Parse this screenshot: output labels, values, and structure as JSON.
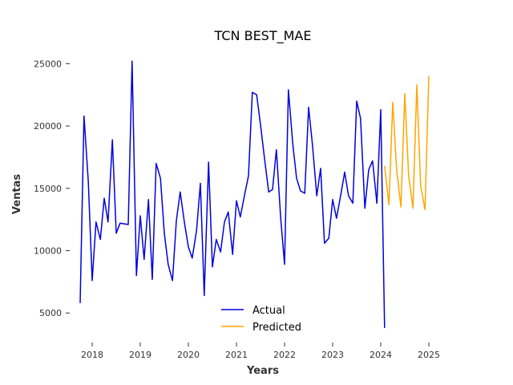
{
  "chart_data": {
    "type": "line",
    "title": "TCN BEST_MAE",
    "xlabel": "Years",
    "ylabel": "Ventas",
    "xlim": [
      2017.55,
      2025.55
    ],
    "ylim": [
      2700,
      25600
    ],
    "x_ticks": [
      2018,
      2019,
      2020,
      2021,
      2022,
      2023,
      2024,
      2025
    ],
    "x_tick_labels": [
      "2018",
      "2019",
      "2020",
      "2021",
      "2022",
      "2023",
      "2024",
      "2025"
    ],
    "y_ticks": [
      5000,
      10000,
      15000,
      20000,
      25000
    ],
    "y_tick_labels": [
      "5000",
      "10000",
      "15000",
      "20000",
      "25000"
    ],
    "grid": false,
    "legend": "bottom-center",
    "series": [
      {
        "name": "Actual",
        "color": "#0000dd",
        "points": [
          [
            2017.75,
            5800
          ],
          [
            2017.83,
            20800
          ],
          [
            2017.92,
            15500
          ],
          [
            2018.0,
            7600
          ],
          [
            2018.08,
            12300
          ],
          [
            2018.17,
            10900
          ],
          [
            2018.25,
            14200
          ],
          [
            2018.33,
            12300
          ],
          [
            2018.42,
            18900
          ],
          [
            2018.5,
            11400
          ],
          [
            2018.58,
            12200
          ],
          [
            2018.75,
            12100
          ],
          [
            2018.83,
            25200
          ],
          [
            2018.92,
            8000
          ],
          [
            2019.0,
            12800
          ],
          [
            2019.08,
            9300
          ],
          [
            2019.17,
            14100
          ],
          [
            2019.25,
            7700
          ],
          [
            2019.33,
            17000
          ],
          [
            2019.42,
            15800
          ],
          [
            2019.5,
            11400
          ],
          [
            2019.58,
            8900
          ],
          [
            2019.67,
            7600
          ],
          [
            2019.75,
            12400
          ],
          [
            2019.83,
            14700
          ],
          [
            2019.92,
            12200
          ],
          [
            2020.0,
            10300
          ],
          [
            2020.08,
            9400
          ],
          [
            2020.17,
            11600
          ],
          [
            2020.25,
            15400
          ],
          [
            2020.33,
            6400
          ],
          [
            2020.42,
            17100
          ],
          [
            2020.5,
            8700
          ],
          [
            2020.58,
            10900
          ],
          [
            2020.67,
            9900
          ],
          [
            2020.75,
            12300
          ],
          [
            2020.83,
            13100
          ],
          [
            2020.92,
            9700
          ],
          [
            2021.0,
            14000
          ],
          [
            2021.08,
            12700
          ],
          [
            2021.17,
            14500
          ],
          [
            2021.25,
            16000
          ],
          [
            2021.33,
            22700
          ],
          [
            2021.42,
            22500
          ],
          [
            2021.5,
            20100
          ],
          [
            2021.58,
            17500
          ],
          [
            2021.67,
            14700
          ],
          [
            2021.75,
            14900
          ],
          [
            2021.83,
            18100
          ],
          [
            2021.92,
            12600
          ],
          [
            2022.0,
            8900
          ],
          [
            2022.08,
            22900
          ],
          [
            2022.17,
            18600
          ],
          [
            2022.25,
            15800
          ],
          [
            2022.33,
            14800
          ],
          [
            2022.42,
            14600
          ],
          [
            2022.5,
            21500
          ],
          [
            2022.58,
            18500
          ],
          [
            2022.67,
            14400
          ],
          [
            2022.75,
            16600
          ],
          [
            2022.83,
            10600
          ],
          [
            2022.92,
            11000
          ],
          [
            2023.0,
            14100
          ],
          [
            2023.08,
            12600
          ],
          [
            2023.17,
            14500
          ],
          [
            2023.25,
            16300
          ],
          [
            2023.33,
            14400
          ],
          [
            2023.42,
            13800
          ],
          [
            2023.5,
            22000
          ],
          [
            2023.58,
            20600
          ],
          [
            2023.67,
            13400
          ],
          [
            2023.75,
            16500
          ],
          [
            2023.83,
            17200
          ],
          [
            2023.92,
            13800
          ],
          [
            2024.0,
            21300
          ],
          [
            2024.08,
            3800
          ]
        ]
      },
      {
        "name": "Predicted",
        "color": "#ffa500",
        "points": [
          [
            2024.08,
            16800
          ],
          [
            2024.17,
            13700
          ],
          [
            2024.25,
            21900
          ],
          [
            2024.33,
            16500
          ],
          [
            2024.42,
            13500
          ],
          [
            2024.5,
            22600
          ],
          [
            2024.58,
            16000
          ],
          [
            2024.67,
            13400
          ],
          [
            2024.75,
            23300
          ],
          [
            2024.83,
            15200
          ],
          [
            2024.92,
            13300
          ],
          [
            2025.0,
            24000
          ]
        ]
      }
    ]
  }
}
